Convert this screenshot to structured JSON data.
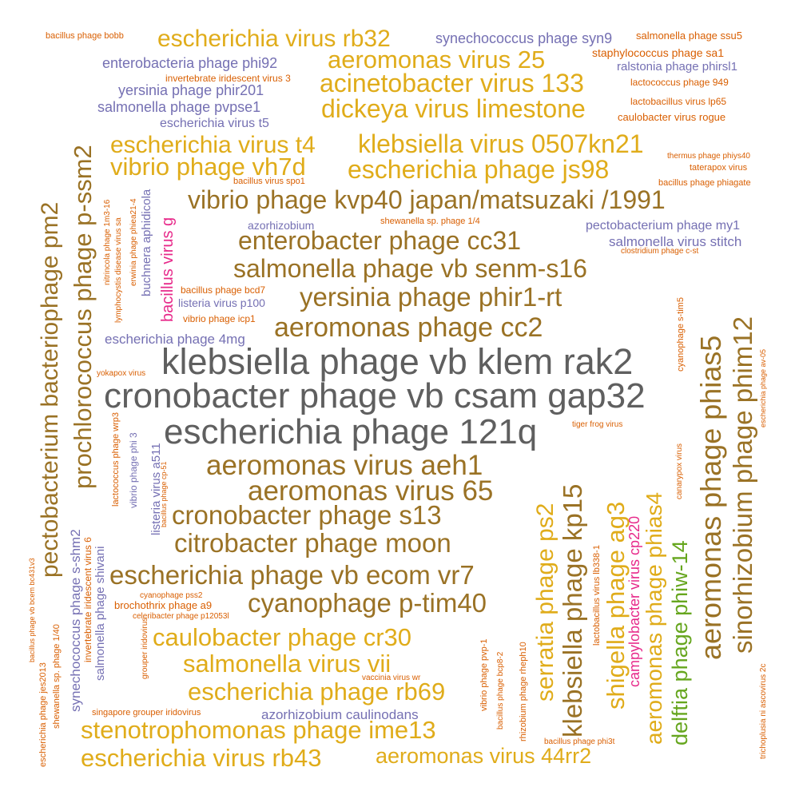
{
  "palette": {
    "gray": "#5f5f5f",
    "brown": "#9a7225",
    "gold": "#e0ac1a",
    "purple": "#7570b3",
    "orange": "#d95f02",
    "magenta": "#e7298a",
    "green": "#66a61e"
  },
  "words": [
    {
      "text": "klebsiella phage vb klem rak2",
      "color": "gray"
    },
    {
      "text": "cronobacter phage vb csam gap32",
      "color": "gray"
    },
    {
      "text": "escherichia phage 121q",
      "color": "gray"
    },
    {
      "text": "vibrio phage kvp40 japan/matsuzaki /1991",
      "color": "brown"
    },
    {
      "text": "enterobacter phage cc31",
      "color": "brown"
    },
    {
      "text": "salmonella phage vb senm-s16",
      "color": "brown"
    },
    {
      "text": "yersinia phage phir1-rt",
      "color": "brown"
    },
    {
      "text": "aeromonas phage cc2",
      "color": "brown"
    },
    {
      "text": "aeromonas virus aeh1",
      "color": "brown"
    },
    {
      "text": "aeromonas virus 65",
      "color": "brown"
    },
    {
      "text": "cronobacter phage s13",
      "color": "brown"
    },
    {
      "text": "citrobacter phage moon",
      "color": "brown"
    },
    {
      "text": "escherichia phage vb ecom vr7",
      "color": "brown"
    },
    {
      "text": "cyanophage p-tim40",
      "color": "brown"
    },
    {
      "text": "pectobacterium bacteriophage pm2",
      "color": "brown"
    },
    {
      "text": "prochlorococcus phage p-ssm2",
      "color": "brown"
    },
    {
      "text": "klebsiella phage kp15",
      "color": "brown"
    },
    {
      "text": "aeromonas phage phias5",
      "color": "brown"
    },
    {
      "text": "sinorhizobium phage phim12",
      "color": "brown"
    },
    {
      "text": "escherichia virus rb32",
      "color": "gold"
    },
    {
      "text": "aeromonas virus 25",
      "color": "gold"
    },
    {
      "text": "acinetobacter virus 133",
      "color": "gold"
    },
    {
      "text": "dickeya virus limestone",
      "color": "gold"
    },
    {
      "text": "klebsiella virus 0507kn21",
      "color": "gold"
    },
    {
      "text": "escherichia virus t4",
      "color": "gold"
    },
    {
      "text": "escherichia phage js98",
      "color": "gold"
    },
    {
      "text": "vibrio phage vh7d",
      "color": "gold"
    },
    {
      "text": "caulobacter phage cr30",
      "color": "gold"
    },
    {
      "text": "salmonella virus vii",
      "color": "gold"
    },
    {
      "text": "escherichia phage rb69",
      "color": "gold"
    },
    {
      "text": "stenotrophomonas phage ime13",
      "color": "gold"
    },
    {
      "text": "escherichia virus rb43",
      "color": "gold"
    },
    {
      "text": "aeromonas virus 44rr2",
      "color": "gold"
    },
    {
      "text": "serratia phage ps2",
      "color": "gold"
    },
    {
      "text": "shigella phage ag3",
      "color": "gold"
    },
    {
      "text": "aeromonas phage phias4",
      "color": "gold"
    },
    {
      "text": "delftia phage phiw-14",
      "color": "green"
    },
    {
      "text": "campylobacter virus cp220",
      "color": "magenta"
    },
    {
      "text": "bacillus virus g",
      "color": "magenta"
    },
    {
      "text": "synechococcus phage syn9",
      "color": "purple"
    },
    {
      "text": "enterobacteria phage phi92",
      "color": "purple"
    },
    {
      "text": "yersinia phage phir201",
      "color": "purple"
    },
    {
      "text": "salmonella phage pvpse1",
      "color": "purple"
    },
    {
      "text": "escherichia virus t5",
      "color": "purple"
    },
    {
      "text": "ralstonia phage phirsl1",
      "color": "purple"
    },
    {
      "text": "azorhizobium",
      "color": "purple"
    },
    {
      "text": "pectobacterium phage my1",
      "color": "purple"
    },
    {
      "text": "salmonella virus stitch",
      "color": "purple"
    },
    {
      "text": "listeria virus p100",
      "color": "purple"
    },
    {
      "text": "escherichia phage 4mg",
      "color": "purple"
    },
    {
      "text": "azorhizobium caulinodans",
      "color": "purple"
    },
    {
      "text": "buchnera aphidicola",
      "color": "purple"
    },
    {
      "text": "vibrio phage phi 3",
      "color": "purple"
    },
    {
      "text": "listeria virus a511",
      "color": "purple"
    },
    {
      "text": "synechococcus phage s-shm2",
      "color": "purple"
    },
    {
      "text": "salmonella phage shivani",
      "color": "purple"
    },
    {
      "text": "bacillus phage bobb",
      "color": "orange"
    },
    {
      "text": "salmonella phage ssu5",
      "color": "orange"
    },
    {
      "text": "staphylococcus phage sa1",
      "color": "orange"
    },
    {
      "text": "invertebrate iridescent virus 3",
      "color": "orange"
    },
    {
      "text": "lactococcus phage 949",
      "color": "orange"
    },
    {
      "text": "lactobacillus virus lp65",
      "color": "orange"
    },
    {
      "text": "caulobacter virus rogue",
      "color": "orange"
    },
    {
      "text": "thermus phage phiys40",
      "color": "orange"
    },
    {
      "text": "taterapox virus",
      "color": "orange"
    },
    {
      "text": "bacillus virus spo1",
      "color": "orange"
    },
    {
      "text": "bacillus phage phiagate",
      "color": "orange"
    },
    {
      "text": "shewanella sp. phage 1/4",
      "color": "orange"
    },
    {
      "text": "clostridium phage c-st",
      "color": "orange"
    },
    {
      "text": "bacillus phage bcd7",
      "color": "orange"
    },
    {
      "text": "vibrio phage icp1",
      "color": "orange"
    },
    {
      "text": "yokapox virus",
      "color": "orange"
    },
    {
      "text": "tiger frog virus",
      "color": "orange"
    },
    {
      "text": "cyanophage pss2",
      "color": "orange"
    },
    {
      "text": "brochothrix phage a9",
      "color": "orange"
    },
    {
      "text": "celeribacter phage p12053l",
      "color": "orange"
    },
    {
      "text": "vaccinia virus wr",
      "color": "orange"
    },
    {
      "text": "singapore grouper iridovirus",
      "color": "orange"
    },
    {
      "text": "bacillus phage phi3t",
      "color": "orange"
    },
    {
      "text": "nitrincola phage 1m3-16",
      "color": "orange"
    },
    {
      "text": "lymphocystis disease virus sa",
      "color": "orange"
    },
    {
      "text": "erwinia phage phiea21-4",
      "color": "orange"
    },
    {
      "text": "lactococcus phage wrp3",
      "color": "orange"
    },
    {
      "text": "bacillus phage cp-51",
      "color": "orange"
    },
    {
      "text": "invertebrate iridescent virus 6",
      "color": "orange"
    },
    {
      "text": "bacillus phage vb bcem bc431v3",
      "color": "orange"
    },
    {
      "text": "escherichia phage jes2013",
      "color": "orange"
    },
    {
      "text": "shewanella sp. phage 1/40",
      "color": "orange"
    },
    {
      "text": "grouper iridovirus",
      "color": "orange"
    },
    {
      "text": "vibrio phage pvp-1",
      "color": "orange"
    },
    {
      "text": "bacillus phage bcp8-2",
      "color": "orange"
    },
    {
      "text": "rhizobium phage rheph10",
      "color": "orange"
    },
    {
      "text": "lactobacillus virus lb338-1",
      "color": "orange"
    },
    {
      "text": "cyanophage s-tim5",
      "color": "orange"
    },
    {
      "text": "canarypox virus",
      "color": "orange"
    },
    {
      "text": "escherichia phage av-05",
      "color": "orange"
    },
    {
      "text": "trichoplusia ni ascovirus 2c",
      "color": "orange"
    }
  ]
}
